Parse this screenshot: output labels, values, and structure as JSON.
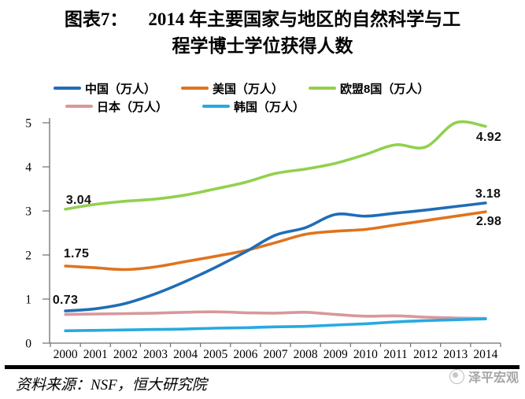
{
  "title": {
    "prefix": "图表7：",
    "line1": "2014 年主要国家与地区的自然科学与工",
    "line2": "程学博士学位获得人数"
  },
  "chart_data": {
    "type": "line",
    "x": [
      "2000",
      "2001",
      "2002",
      "2003",
      "2004",
      "2005",
      "2006",
      "2007",
      "2008",
      "2009",
      "2010",
      "2011",
      "2012",
      "2013",
      "2014"
    ],
    "ylim": [
      0,
      5
    ],
    "yticks": [
      "0",
      "1",
      "2",
      "3",
      "4",
      "5"
    ],
    "grid": false,
    "legend_position": "top",
    "series": [
      {
        "id": "china",
        "name": "中国（万人）",
        "color": "#1F6DB6",
        "values": [
          0.73,
          0.78,
          0.9,
          1.12,
          1.4,
          1.72,
          2.07,
          2.45,
          2.62,
          2.92,
          2.88,
          2.95,
          3.02,
          3.1,
          3.18
        ]
      },
      {
        "id": "usa",
        "name": "美国（万人）",
        "color": "#E0731D",
        "values": [
          1.75,
          1.71,
          1.67,
          1.73,
          1.85,
          1.97,
          2.1,
          2.28,
          2.47,
          2.54,
          2.58,
          2.68,
          2.78,
          2.88,
          2.98
        ]
      },
      {
        "id": "eu8",
        "name": "欧盟8国（万人）",
        "color": "#92D04F",
        "values": [
          3.04,
          3.15,
          3.22,
          3.27,
          3.36,
          3.5,
          3.65,
          3.85,
          3.95,
          4.08,
          4.28,
          4.5,
          4.45,
          5.0,
          4.92
        ]
      },
      {
        "id": "japan",
        "name": "日本（万人）",
        "color": "#D8989A",
        "values": [
          0.65,
          0.66,
          0.67,
          0.68,
          0.7,
          0.71,
          0.69,
          0.68,
          0.7,
          0.65,
          0.61,
          0.62,
          0.59,
          0.57,
          0.56
        ]
      },
      {
        "id": "korea",
        "name": "韩国（万人）",
        "color": "#28A9E1",
        "values": [
          0.28,
          0.29,
          0.3,
          0.31,
          0.32,
          0.34,
          0.35,
          0.37,
          0.38,
          0.41,
          0.44,
          0.48,
          0.51,
          0.53,
          0.55
        ]
      }
    ],
    "point_labels": [
      {
        "series": "eu8",
        "year": "2000",
        "text": "3.04"
      },
      {
        "series": "usa",
        "year": "2000",
        "text": "1.75"
      },
      {
        "series": "china",
        "year": "2000",
        "text": "0.73"
      },
      {
        "series": "eu8",
        "year": "2014",
        "text": "4.92"
      },
      {
        "series": "china",
        "year": "2014",
        "text": "3.18"
      },
      {
        "series": "usa",
        "year": "2014",
        "text": "2.98"
      }
    ]
  },
  "source": {
    "text": "资料来源：NSF，恒大研究院"
  },
  "watermark": {
    "text": "泽平宏观"
  }
}
